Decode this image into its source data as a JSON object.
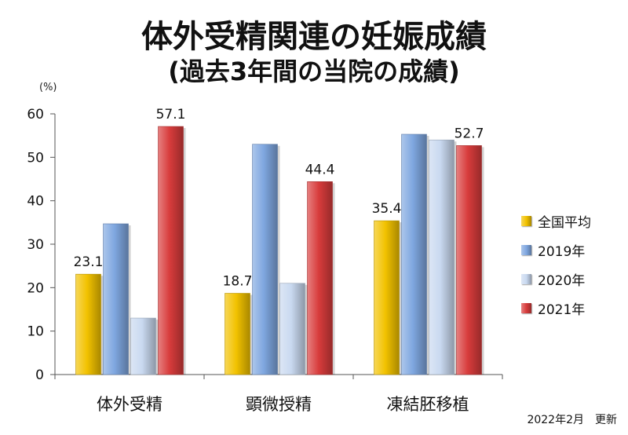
{
  "title": "体外受精関連の妊娠成績",
  "subtitle": "(過去3年間の当院の成績)",
  "unit": "(%)",
  "footnote": "2022年2月　更新",
  "chart_data": {
    "type": "bar",
    "categories": [
      "体外受精",
      "顕微授精",
      "凍結胚移植"
    ],
    "ylim": [
      0,
      60
    ],
    "yticks": [
      0,
      10,
      20,
      30,
      40,
      50,
      60
    ],
    "grid": false,
    "legend_position": "right",
    "series": [
      {
        "name": "全国平均",
        "values": [
          23.1,
          18.7,
          35.4
        ],
        "color": "#f2c200",
        "show_labels": true
      },
      {
        "name": "2019年",
        "values": [
          34.7,
          53.0,
          55.3
        ],
        "color": "#7fa7e0",
        "show_labels": false
      },
      {
        "name": "2020年",
        "values": [
          13.0,
          21.0,
          54.0
        ],
        "color": "#c9d9f0",
        "show_labels": false
      },
      {
        "name": "2021年",
        "values": [
          57.1,
          44.4,
          52.7
        ],
        "color": "#d83c3c",
        "show_labels": true
      }
    ]
  }
}
